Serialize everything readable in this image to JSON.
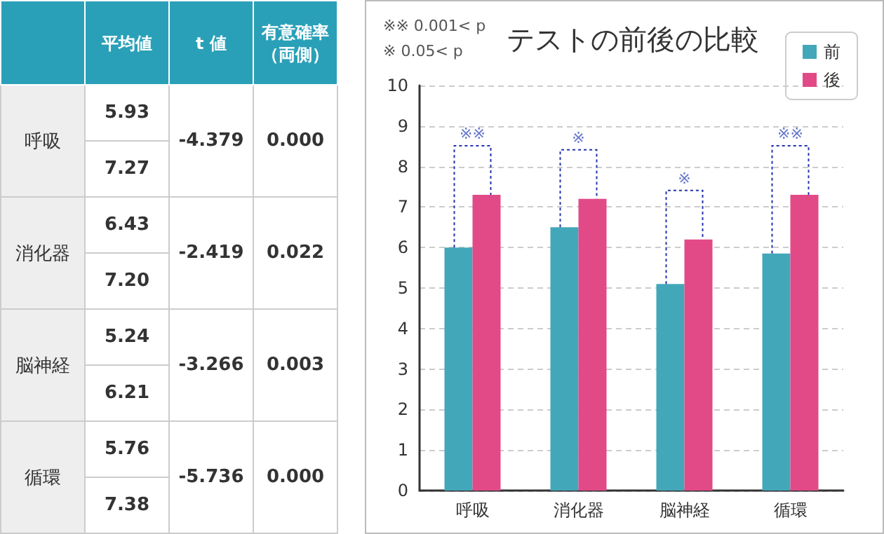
{
  "chart_data": [
    {
      "type": "other",
      "annotations": [
        "平均値",
        "t 値",
        "有意確率（両側）",
        "呼吸",
        "5.93",
        "7.27",
        "-4.379",
        "0.000",
        "消化器",
        "6.43",
        "7.20",
        "-2.419",
        "0.022",
        "脳神経",
        "5.24",
        "6.21",
        "-3.266",
        "0.003",
        "循環",
        "5.76",
        "7.38",
        "-5.736",
        "0.000"
      ]
    },
    {
      "type": "bar",
      "title": "テストの前後の比較",
      "categories": [
        "呼吸",
        "消化器",
        "脳神経",
        "循環"
      ],
      "series": [
        {
          "name": "前",
          "color": "#43a7ba",
          "values": [
            6.0,
            6.5,
            5.1,
            5.85
          ]
        },
        {
          "name": "後",
          "color": "#e24a87",
          "values": [
            7.3,
            7.2,
            6.2,
            7.3
          ]
        }
      ],
      "ylim": [
        0,
        10
      ],
      "yticks": [
        0,
        1,
        2,
        3,
        4,
        5,
        6,
        7,
        8,
        9,
        10
      ],
      "grid": "y",
      "legend": "top right",
      "annotations": [
        "※※ 0.001< p",
        "※ 0.05< p",
        "※※",
        "※",
        "※",
        "※※"
      ]
    }
  ]
}
